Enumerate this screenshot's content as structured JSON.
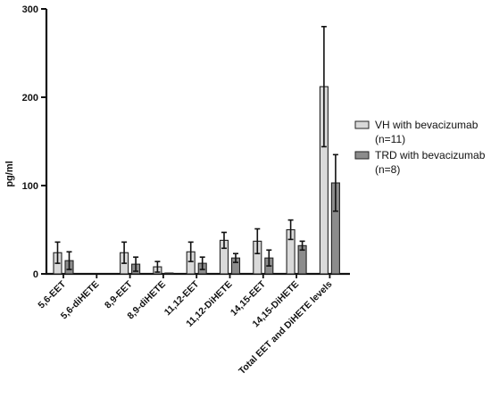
{
  "chart_data": {
    "type": "bar",
    "ylabel": "pg/ml",
    "xlabel": "",
    "ylim": [
      0,
      300
    ],
    "yticks": [
      "0",
      "100",
      "200",
      "300"
    ],
    "categories": [
      "5,6-EET",
      "5,6-diHETE",
      "8,9-EET",
      "8,9-diHETE",
      "11,12-EET",
      "11,12-DiHETE",
      "14,15-EET",
      "14,15-DiHETE",
      "Total EET and DiHETE levels"
    ],
    "series": [
      {
        "name": "VH with bevacizumab",
        "n_label": "(n=11)",
        "color": "#d9d9d9",
        "values": [
          24,
          0,
          24,
          8,
          25,
          38,
          37,
          50,
          212
        ],
        "errors": [
          12,
          0,
          12,
          6,
          11,
          9,
          14,
          11,
          68
        ]
      },
      {
        "name": "TRD with bevacizumab",
        "n_label": "(n=8)",
        "color": "#8c8c8c",
        "values": [
          15,
          0,
          11,
          1,
          12,
          18,
          18,
          32,
          103
        ],
        "errors": [
          10,
          0,
          8,
          0,
          7,
          5,
          9,
          5,
          32
        ]
      }
    ],
    "grid": false,
    "legend_position": "right"
  }
}
